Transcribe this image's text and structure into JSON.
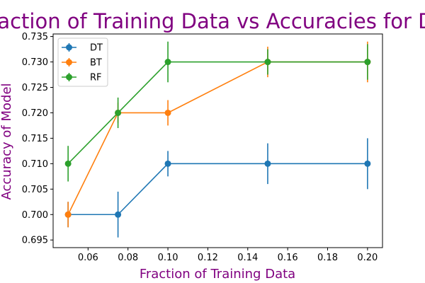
{
  "chart_data": {
    "type": "line",
    "title": "Fraction of Training Data vs Accuracies for DT",
    "xlabel": "Fraction of Training Data",
    "ylabel": "Accuracy of Model",
    "xlim": [
      0.0425,
      0.2075
    ],
    "ylim": [
      0.6935,
      0.7355
    ],
    "xticks": [
      0.06,
      0.08,
      0.1,
      0.12,
      0.14,
      0.16,
      0.18,
      0.2
    ],
    "xtick_labels": [
      "0.06",
      "0.08",
      "0.10",
      "0.12",
      "0.14",
      "0.16",
      "0.18",
      "0.20"
    ],
    "yticks": [
      0.695,
      0.7,
      0.705,
      0.71,
      0.715,
      0.72,
      0.725,
      0.73,
      0.735
    ],
    "ytick_labels": [
      "0.695",
      "0.700",
      "0.705",
      "0.710",
      "0.715",
      "0.720",
      "0.725",
      "0.730",
      "0.735"
    ],
    "grid": false,
    "legend": "top-left",
    "x": [
      0.05,
      0.075,
      0.1,
      0.15,
      0.2
    ],
    "series": [
      {
        "name": "DT",
        "color": "#1f77b4",
        "values": [
          0.7,
          0.7,
          0.71,
          0.71,
          0.71
        ],
        "errors": [
          0.0025,
          0.0045,
          0.0025,
          0.004,
          0.005
        ]
      },
      {
        "name": "BT",
        "color": "#ff7f0e",
        "values": [
          0.7,
          0.72,
          0.72,
          0.73,
          0.73
        ],
        "errors": [
          0.0025,
          0.002,
          0.0025,
          0.003,
          0.004
        ]
      },
      {
        "name": "RF",
        "color": "#2ca02c",
        "values": [
          0.71,
          0.72,
          0.73,
          0.73,
          0.73
        ],
        "errors": [
          0.0035,
          0.003,
          0.004,
          0.0025,
          0.0035
        ]
      }
    ]
  }
}
